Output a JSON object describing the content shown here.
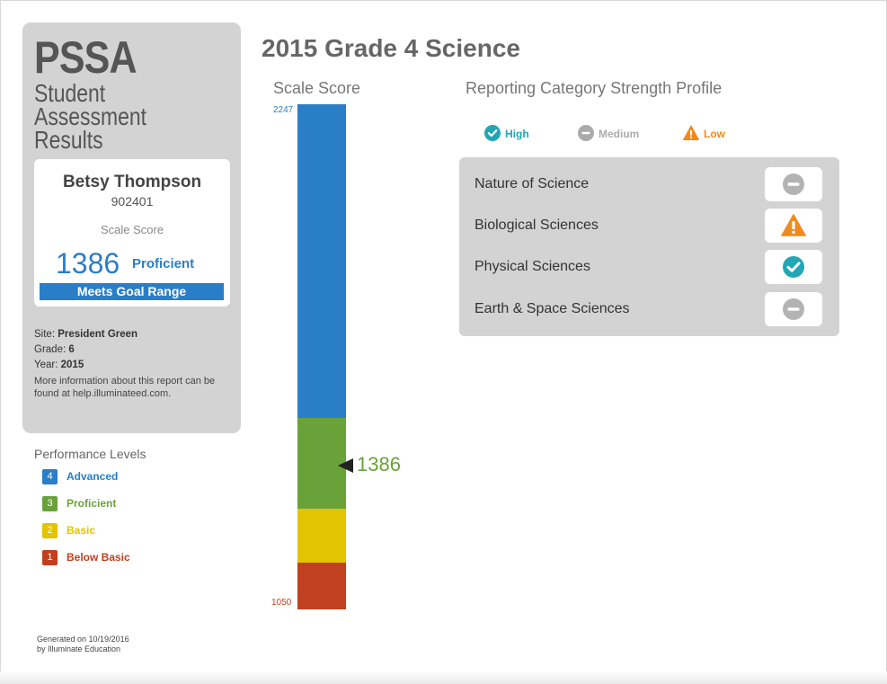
{
  "report": {
    "brand": "PSSA",
    "subtitle": "Student Assessment Results",
    "title": "2015 Grade 4 Science"
  },
  "student": {
    "name": "Betsy Thompson",
    "id": "902401",
    "score_label": "Scale Score",
    "score": "1386",
    "level": "Proficient",
    "goal": "Meets Goal Range"
  },
  "details": {
    "site_label": "Site:",
    "site": "President Green",
    "grade_label": "Grade:",
    "grade": "6",
    "year_label": "Year:",
    "year": "2015",
    "note": "More information about this report can be found at help.illuminateed.com."
  },
  "performance_levels": {
    "title": "Performance Levels",
    "items": [
      {
        "num": "4",
        "label": "Advanced",
        "color": "#2a7ec8"
      },
      {
        "num": "3",
        "label": "Proficient",
        "color": "#6aa23a"
      },
      {
        "num": "2",
        "label": "Basic",
        "color": "#e3c400"
      },
      {
        "num": "1",
        "label": "Below Basic",
        "color": "#c0401f"
      }
    ]
  },
  "scale_chart": {
    "title": "Scale Score",
    "max": "2247",
    "min": "1050",
    "score": "1386",
    "segment_fractions": [
      0.621,
      0.18,
      0.107,
      0.092
    ],
    "segment_colors": [
      "#2a7ec8",
      "#6aa23a",
      "#e3c400",
      "#c0401f"
    ],
    "marker_fraction": 0.716
  },
  "strength_profile": {
    "title": "Reporting Category Strength Profile",
    "legend": [
      {
        "label": "High",
        "icon": "check-circle-icon",
        "color": "#22a6b5"
      },
      {
        "label": "Medium",
        "icon": "minus-circle-icon",
        "color": "#aaaaaa"
      },
      {
        "label": "Low",
        "icon": "warning-triangle-icon",
        "color": "#f08a1c"
      }
    ],
    "categories": [
      {
        "label": "Nature of Science",
        "rating": "medium"
      },
      {
        "label": "Biological Sciences",
        "rating": "low"
      },
      {
        "label": "Physical Sciences",
        "rating": "high"
      },
      {
        "label": "Earth & Space Sciences",
        "rating": "medium"
      }
    ]
  },
  "footer": {
    "generated": "Generated on 10/19/2016",
    "by": "by Illuminate Education"
  }
}
